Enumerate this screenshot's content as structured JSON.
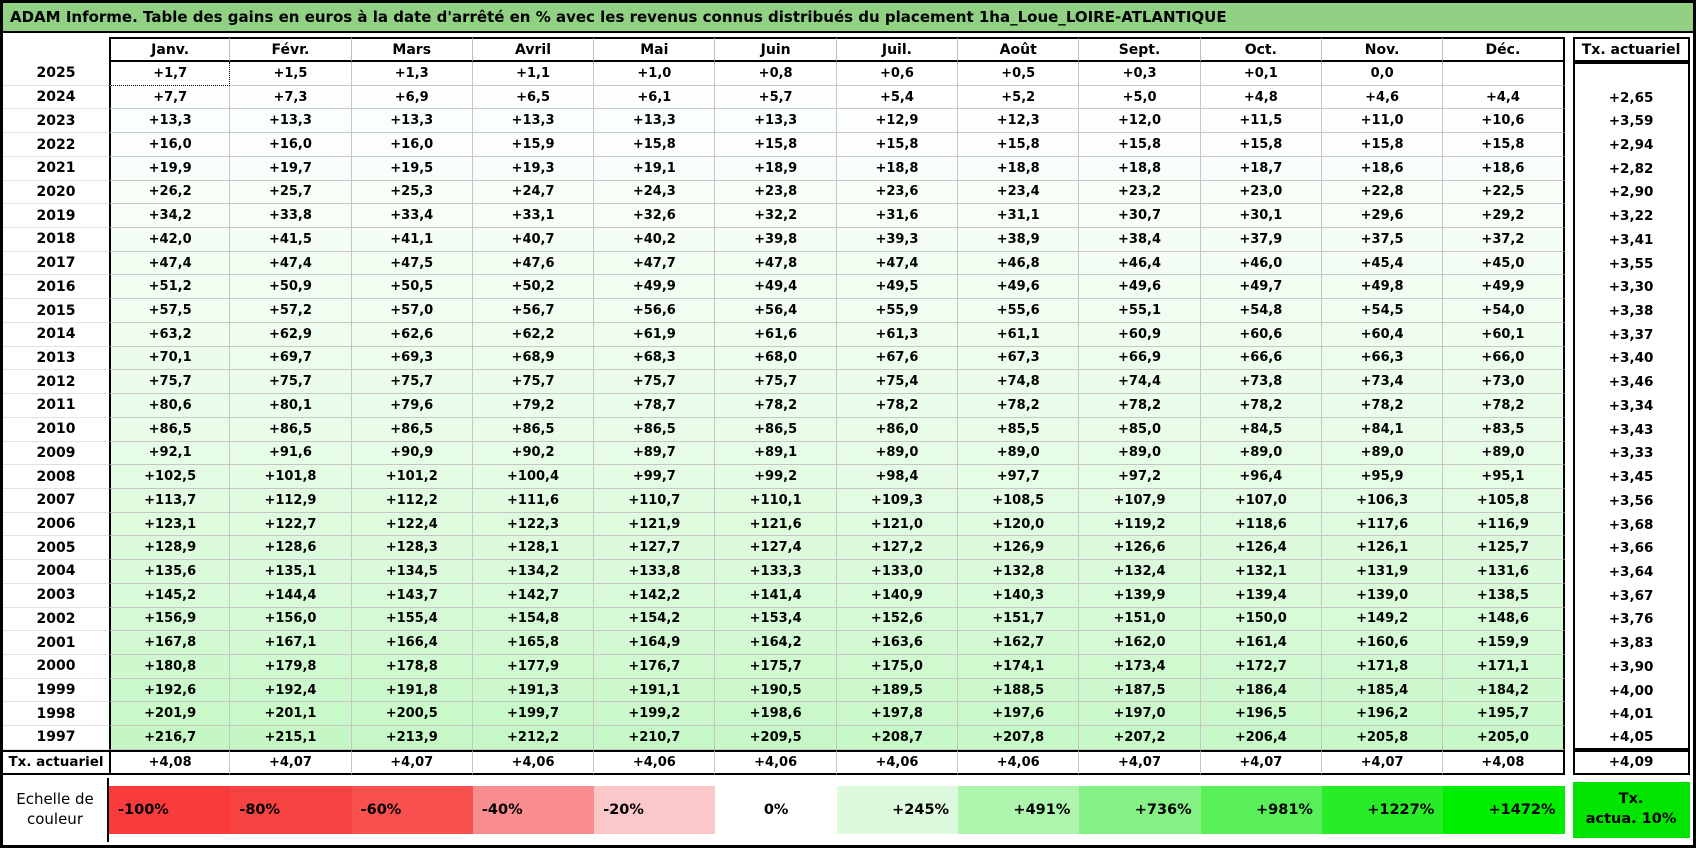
{
  "title": "ADAM Informe. Table des gains en euros à la date d'arrêté en % avec les revenus connus distribués du placement 1ha_Loue_LOIRE-ATLANTIQUE",
  "colors": {
    "title_bg": "#90d183",
    "positive_scale_max": "#00e400",
    "negative_scale_max": "#f93b3b"
  },
  "selected_cell": {
    "year": "2025",
    "month": "Janv."
  },
  "table": {
    "months": [
      "Janv.",
      "Févr.",
      "Mars",
      "Avril",
      "Mai",
      "Juin",
      "Juil.",
      "Août",
      "Sept.",
      "Oct.",
      "Nov.",
      "Déc."
    ],
    "tx_header": "Tx. actuariel",
    "rows": [
      {
        "year": "2025",
        "values": [
          "+1,7",
          "+1,5",
          "+1,3",
          "+1,1",
          "+1,0",
          "+0,8",
          "+0,6",
          "+0,5",
          "+0,3",
          "+0,1",
          "0,0",
          ""
        ],
        "tx": ""
      },
      {
        "year": "2024",
        "values": [
          "+7,7",
          "+7,3",
          "+6,9",
          "+6,5",
          "+6,1",
          "+5,7",
          "+5,4",
          "+5,2",
          "+5,0",
          "+4,8",
          "+4,6",
          "+4,4"
        ],
        "tx": "+2,65"
      },
      {
        "year": "2023",
        "values": [
          "+13,3",
          "+13,3",
          "+13,3",
          "+13,3",
          "+13,3",
          "+13,3",
          "+12,9",
          "+12,3",
          "+12,0",
          "+11,5",
          "+11,0",
          "+10,6"
        ],
        "tx": "+3,59"
      },
      {
        "year": "2022",
        "values": [
          "+16,0",
          "+16,0",
          "+16,0",
          "+15,9",
          "+15,8",
          "+15,8",
          "+15,8",
          "+15,8",
          "+15,8",
          "+15,8",
          "+15,8",
          "+15,8"
        ],
        "tx": "+2,94"
      },
      {
        "year": "2021",
        "values": [
          "+19,9",
          "+19,7",
          "+19,5",
          "+19,3",
          "+19,1",
          "+18,9",
          "+18,8",
          "+18,8",
          "+18,8",
          "+18,7",
          "+18,6",
          "+18,6"
        ],
        "tx": "+2,82"
      },
      {
        "year": "2020",
        "values": [
          "+26,2",
          "+25,7",
          "+25,3",
          "+24,7",
          "+24,3",
          "+23,8",
          "+23,6",
          "+23,4",
          "+23,2",
          "+23,0",
          "+22,8",
          "+22,5"
        ],
        "tx": "+2,90"
      },
      {
        "year": "2019",
        "values": [
          "+34,2",
          "+33,8",
          "+33,4",
          "+33,1",
          "+32,6",
          "+32,2",
          "+31,6",
          "+31,1",
          "+30,7",
          "+30,1",
          "+29,6",
          "+29,2"
        ],
        "tx": "+3,22"
      },
      {
        "year": "2018",
        "values": [
          "+42,0",
          "+41,5",
          "+41,1",
          "+40,7",
          "+40,2",
          "+39,8",
          "+39,3",
          "+38,9",
          "+38,4",
          "+37,9",
          "+37,5",
          "+37,2"
        ],
        "tx": "+3,41"
      },
      {
        "year": "2017",
        "values": [
          "+47,4",
          "+47,4",
          "+47,5",
          "+47,6",
          "+47,7",
          "+47,8",
          "+47,4",
          "+46,8",
          "+46,4",
          "+46,0",
          "+45,4",
          "+45,0"
        ],
        "tx": "+3,55"
      },
      {
        "year": "2016",
        "values": [
          "+51,2",
          "+50,9",
          "+50,5",
          "+50,2",
          "+49,9",
          "+49,4",
          "+49,5",
          "+49,6",
          "+49,6",
          "+49,7",
          "+49,8",
          "+49,9"
        ],
        "tx": "+3,30"
      },
      {
        "year": "2015",
        "values": [
          "+57,5",
          "+57,2",
          "+57,0",
          "+56,7",
          "+56,6",
          "+56,4",
          "+55,9",
          "+55,6",
          "+55,1",
          "+54,8",
          "+54,5",
          "+54,0"
        ],
        "tx": "+3,38"
      },
      {
        "year": "2014",
        "values": [
          "+63,2",
          "+62,9",
          "+62,6",
          "+62,2",
          "+61,9",
          "+61,6",
          "+61,3",
          "+61,1",
          "+60,9",
          "+60,6",
          "+60,4",
          "+60,1"
        ],
        "tx": "+3,37"
      },
      {
        "year": "2013",
        "values": [
          "+70,1",
          "+69,7",
          "+69,3",
          "+68,9",
          "+68,3",
          "+68,0",
          "+67,6",
          "+67,3",
          "+66,9",
          "+66,6",
          "+66,3",
          "+66,0"
        ],
        "tx": "+3,40"
      },
      {
        "year": "2012",
        "values": [
          "+75,7",
          "+75,7",
          "+75,7",
          "+75,7",
          "+75,7",
          "+75,7",
          "+75,4",
          "+74,8",
          "+74,4",
          "+73,8",
          "+73,4",
          "+73,0"
        ],
        "tx": "+3,46"
      },
      {
        "year": "2011",
        "values": [
          "+80,6",
          "+80,1",
          "+79,6",
          "+79,2",
          "+78,7",
          "+78,2",
          "+78,2",
          "+78,2",
          "+78,2",
          "+78,2",
          "+78,2",
          "+78,2"
        ],
        "tx": "+3,34"
      },
      {
        "year": "2010",
        "values": [
          "+86,5",
          "+86,5",
          "+86,5",
          "+86,5",
          "+86,5",
          "+86,5",
          "+86,0",
          "+85,5",
          "+85,0",
          "+84,5",
          "+84,1",
          "+83,5"
        ],
        "tx": "+3,43"
      },
      {
        "year": "2009",
        "values": [
          "+92,1",
          "+91,6",
          "+90,9",
          "+90,2",
          "+89,7",
          "+89,1",
          "+89,0",
          "+89,0",
          "+89,0",
          "+89,0",
          "+89,0",
          "+89,0"
        ],
        "tx": "+3,33"
      },
      {
        "year": "2008",
        "values": [
          "+102,5",
          "+101,8",
          "+101,2",
          "+100,4",
          "+99,7",
          "+99,2",
          "+98,4",
          "+97,7",
          "+97,2",
          "+96,4",
          "+95,9",
          "+95,1"
        ],
        "tx": "+3,45"
      },
      {
        "year": "2007",
        "values": [
          "+113,7",
          "+112,9",
          "+112,2",
          "+111,6",
          "+110,7",
          "+110,1",
          "+109,3",
          "+108,5",
          "+107,9",
          "+107,0",
          "+106,3",
          "+105,8"
        ],
        "tx": "+3,56"
      },
      {
        "year": "2006",
        "values": [
          "+123,1",
          "+122,7",
          "+122,4",
          "+122,3",
          "+121,9",
          "+121,6",
          "+121,0",
          "+120,0",
          "+119,2",
          "+118,6",
          "+117,6",
          "+116,9"
        ],
        "tx": "+3,68"
      },
      {
        "year": "2005",
        "values": [
          "+128,9",
          "+128,6",
          "+128,3",
          "+128,1",
          "+127,7",
          "+127,4",
          "+127,2",
          "+126,9",
          "+126,6",
          "+126,4",
          "+126,1",
          "+125,7"
        ],
        "tx": "+3,66"
      },
      {
        "year": "2004",
        "values": [
          "+135,6",
          "+135,1",
          "+134,5",
          "+134,2",
          "+133,8",
          "+133,3",
          "+133,0",
          "+132,8",
          "+132,4",
          "+132,1",
          "+131,9",
          "+131,6"
        ],
        "tx": "+3,64"
      },
      {
        "year": "2003",
        "values": [
          "+145,2",
          "+144,4",
          "+143,7",
          "+142,7",
          "+142,2",
          "+141,4",
          "+140,9",
          "+140,3",
          "+139,9",
          "+139,4",
          "+139,0",
          "+138,5"
        ],
        "tx": "+3,67"
      },
      {
        "year": "2002",
        "values": [
          "+156,9",
          "+156,0",
          "+155,4",
          "+154,8",
          "+154,2",
          "+153,4",
          "+152,6",
          "+151,7",
          "+151,0",
          "+150,0",
          "+149,2",
          "+148,6"
        ],
        "tx": "+3,76"
      },
      {
        "year": "2001",
        "values": [
          "+167,8",
          "+167,1",
          "+166,4",
          "+165,8",
          "+164,9",
          "+164,2",
          "+163,6",
          "+162,7",
          "+162,0",
          "+161,4",
          "+160,6",
          "+159,9"
        ],
        "tx": "+3,83"
      },
      {
        "year": "2000",
        "values": [
          "+180,8",
          "+179,8",
          "+178,8",
          "+177,9",
          "+176,7",
          "+175,7",
          "+175,0",
          "+174,1",
          "+173,4",
          "+172,7",
          "+171,8",
          "+171,1"
        ],
        "tx": "+3,90"
      },
      {
        "year": "1999",
        "values": [
          "+192,6",
          "+192,4",
          "+191,8",
          "+191,3",
          "+191,1",
          "+190,5",
          "+189,5",
          "+188,5",
          "+187,5",
          "+186,4",
          "+185,4",
          "+184,2"
        ],
        "tx": "+4,00"
      },
      {
        "year": "1998",
        "values": [
          "+201,9",
          "+201,1",
          "+200,5",
          "+199,7",
          "+199,2",
          "+198,6",
          "+197,8",
          "+197,6",
          "+197,0",
          "+196,5",
          "+196,2",
          "+195,7"
        ],
        "tx": "+4,01"
      },
      {
        "year": "1997",
        "values": [
          "+216,7",
          "+215,1",
          "+213,9",
          "+212,2",
          "+210,7",
          "+209,5",
          "+208,7",
          "+207,8",
          "+207,2",
          "+206,4",
          "+205,8",
          "+205,0"
        ],
        "tx": "+4,05"
      }
    ],
    "footer_label": "Tx. actuariel",
    "footer_values": [
      "+4,08",
      "+4,07",
      "+4,07",
      "+4,06",
      "+4,06",
      "+4,06",
      "+4,06",
      "+4,06",
      "+4,07",
      "+4,07",
      "+4,07",
      "+4,08"
    ],
    "footer_tx": "+4,09"
  },
  "legend": {
    "label": "Echelle de couleur",
    "cells": [
      {
        "label": "-100%",
        "color": "#f93b3b"
      },
      {
        "label": "-80%",
        "color": "#f94242"
      },
      {
        "label": "-60%",
        "color": "#f95050"
      },
      {
        "label": "-40%",
        "color": "#f98c8c"
      },
      {
        "label": "-20%",
        "color": "#fbc7c9"
      },
      {
        "label": "0%",
        "color": "#ffffff"
      },
      {
        "label": "+245%",
        "color": "#defade"
      },
      {
        "label": "+491%",
        "color": "#aff5ae"
      },
      {
        "label": "+736%",
        "color": "#86f286"
      },
      {
        "label": "+981%",
        "color": "#58ef58"
      },
      {
        "label": "+1227%",
        "color": "#28ec28"
      },
      {
        "label": "+1472%",
        "color": "#00ef00"
      }
    ],
    "tx_box": {
      "line1": "Tx.",
      "line2": "actua. 10%",
      "color": "#00e400"
    }
  }
}
